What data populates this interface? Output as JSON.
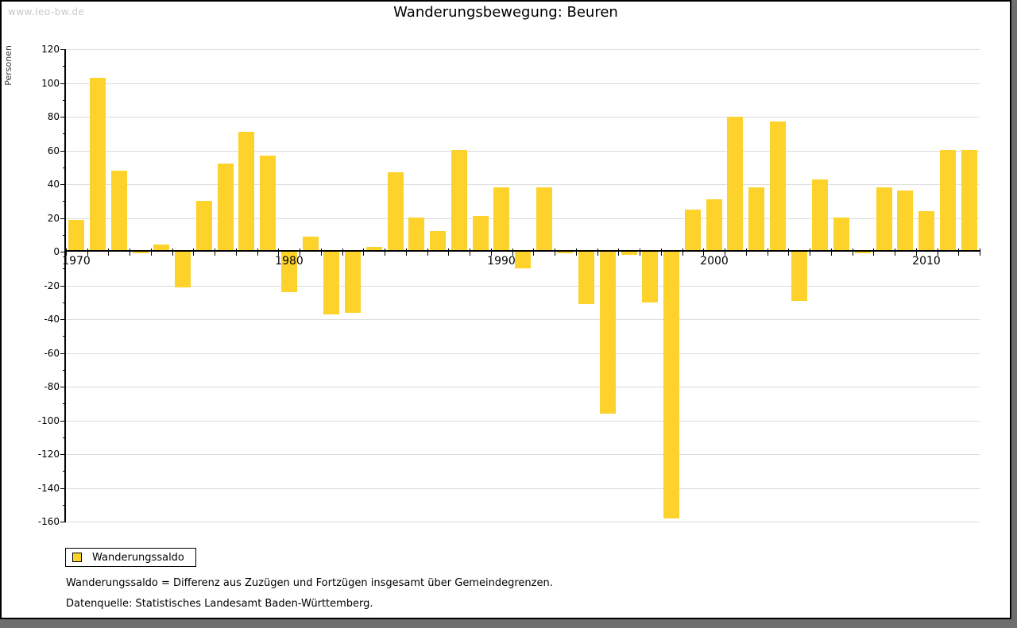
{
  "watermark": "www.leo-bw.de",
  "title": "Wanderungsbewegung: Beuren",
  "legend": {
    "label": "Wanderungssaldo",
    "swatch_color": "#FCD22B"
  },
  "footnotes": [
    "Wanderungssaldo = Differenz aus Zuzügen und Fortzügen insgesamt über Gemeindegrenzen.",
    "Datenquelle: Statistisches Landesamt Baden-Württemberg."
  ],
  "chart_data": {
    "type": "bar",
    "title": "Wanderungsbewegung: Beuren",
    "xlabel": "",
    "ylabel": "Personen",
    "x": [
      1970,
      1971,
      1972,
      1973,
      1974,
      1975,
      1976,
      1977,
      1978,
      1979,
      1980,
      1981,
      1982,
      1983,
      1984,
      1985,
      1986,
      1987,
      1988,
      1989,
      1990,
      1991,
      1992,
      1993,
      1994,
      1995,
      1996,
      1997,
      1998,
      1999,
      2000,
      2001,
      2002,
      2003,
      2004,
      2005,
      2006,
      2007,
      2008,
      2009,
      2010,
      2011,
      2012
    ],
    "series": [
      {
        "name": "Wanderungssaldo",
        "values": [
          19,
          103,
          48,
          -1,
          4,
          -21,
          30,
          52,
          71,
          57,
          -24,
          9,
          -37,
          -36,
          3,
          47,
          20,
          12,
          60,
          21,
          38,
          -10,
          38,
          -1,
          -31,
          -96,
          -2,
          -30,
          -158,
          25,
          31,
          80,
          38,
          77,
          -29,
          43,
          20,
          -1,
          38,
          36,
          24,
          60,
          60
        ]
      }
    ],
    "ylim": [
      -160,
      120
    ],
    "ytick_step": 20,
    "ytick_minor_step": 10,
    "xtick_labeled_years": [
      1970,
      1980,
      1990,
      2000,
      2010
    ],
    "grid": true,
    "legend_position": "bottom-left",
    "bar_color": "#FCD22B",
    "grid_color": "#DCDCDC",
    "axis_color": "#000000"
  }
}
